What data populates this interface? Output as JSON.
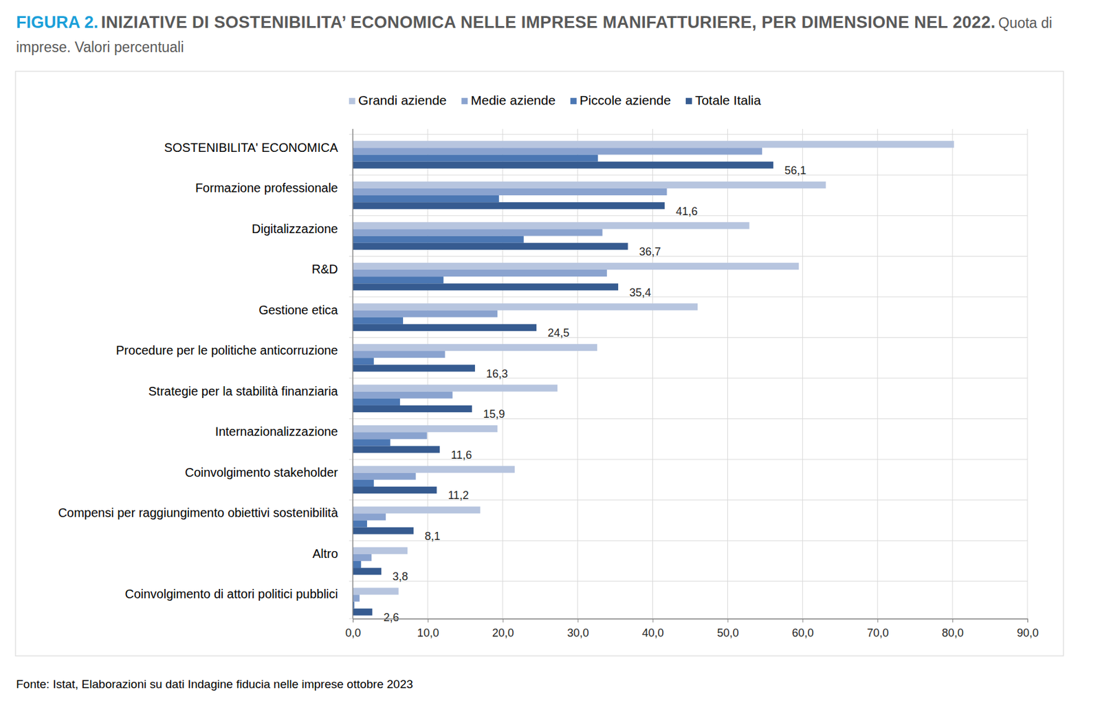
{
  "chart_data": {
    "type": "bar",
    "orientation": "horizontal",
    "figure_label": "FIGURA 2.",
    "title": "INIZIATIVE DI SOSTENIBILITA’ ECONOMICA NELLE IMPRESE MANIFATTURIERE, PER DIMENSIONE NEL 2022.",
    "subtitle": "Quota di imprese. Valori percentuali",
    "source": "Fonte: Istat, Elaborazioni su dati Indagine fiducia nelle imprese ottobre 2023",
    "legend": "top",
    "grid": true,
    "categories": [
      "SOSTENIBILITA' ECONOMICA",
      "Formazione professionale",
      "Digitalizzazione",
      "R&D",
      "Gestione etica",
      "Procedure per le politiche anticorruzione",
      "Strategie per la stabilità finanziaria",
      "Internazionalizzazione",
      "Coinvolgimento stakeholder",
      "Compensi per raggiungimento obiettivi sostenibilità",
      "Altro",
      "Coinvolgimento di attori politici pubblici"
    ],
    "series": [
      {
        "name": "Grandi aziende",
        "color": "#b7c5df",
        "values": [
          80.2,
          63.1,
          52.9,
          59.5,
          46.0,
          32.6,
          27.3,
          19.3,
          21.6,
          17.0,
          7.3,
          6.1
        ]
      },
      {
        "name": "Medie aziende",
        "color": "#8aa3cf",
        "values": [
          54.6,
          41.9,
          33.3,
          33.9,
          19.3,
          12.3,
          13.3,
          9.9,
          8.4,
          4.4,
          2.5,
          0.9
        ]
      },
      {
        "name": "Piccole aziende",
        "color": "#4b77b3",
        "values": [
          32.7,
          19.5,
          22.8,
          12.1,
          6.7,
          2.8,
          6.3,
          5.0,
          2.8,
          1.9,
          1.1,
          0.2
        ]
      },
      {
        "name": "Totale Italia",
        "color": "#365b90",
        "values": [
          56.1,
          41.6,
          36.7,
          35.4,
          24.5,
          16.3,
          15.9,
          11.6,
          11.2,
          8.1,
          3.8,
          2.6
        ],
        "data_labels": true,
        "value_labels": [
          "56,1",
          "41,6",
          "36,7",
          "35,4",
          "24,5",
          "16,3",
          "15,9",
          "11,6",
          "11,2",
          "8,1",
          "3,8",
          "2,6"
        ]
      }
    ],
    "xlim": [
      0,
      90
    ],
    "xticks": [
      {
        "value": 0,
        "label": "0,0"
      },
      {
        "value": 10,
        "label": "10,0"
      },
      {
        "value": 20,
        "label": "20,0"
      },
      {
        "value": 30,
        "label": "30,0"
      },
      {
        "value": 40,
        "label": "40,0"
      },
      {
        "value": 50,
        "label": "50,0"
      },
      {
        "value": 60,
        "label": "60,0"
      },
      {
        "value": 70,
        "label": "70,0"
      },
      {
        "value": 80,
        "label": "80,0"
      },
      {
        "value": 90,
        "label": "90,0"
      }
    ]
  }
}
